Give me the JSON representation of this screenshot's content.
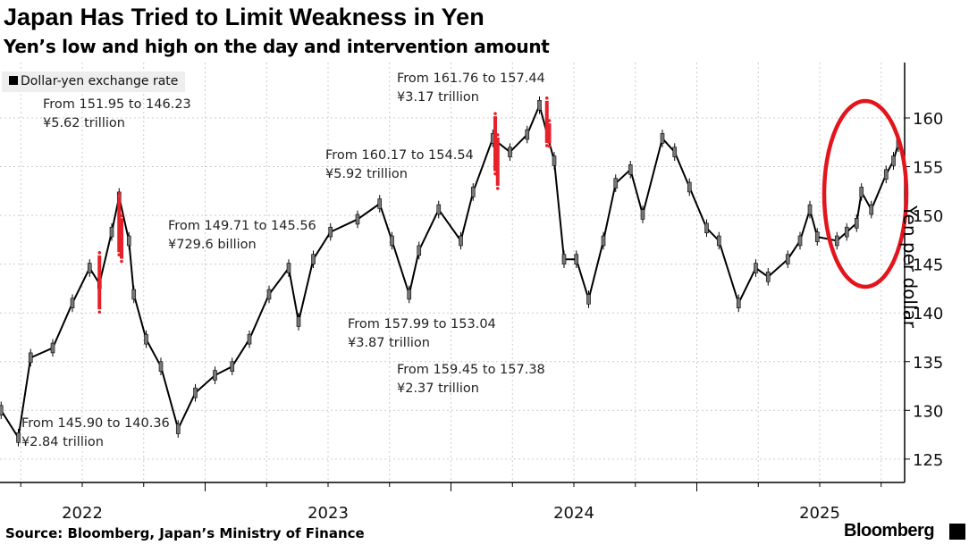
{
  "title": "Japan Has Tried to Limit Weakness in Yen",
  "subtitle": "Yen’s low and high on the day and intervention amount",
  "source": "Source: Bloomberg, Japan’s Ministry of Finance",
  "brand": "Bloomberg",
  "colors": {
    "series": "#000000",
    "intervention": "#e8202a",
    "highlight_ellipse": "#e3151c",
    "grid": "#cccccc"
  },
  "chart_data": {
    "type": "line",
    "ylabel": "Yen per dollar",
    "ylim": [
      122,
      164
    ],
    "yticks": [
      125,
      130,
      135,
      140,
      145,
      150,
      155,
      160
    ],
    "xticks": [
      {
        "label": "2022",
        "x": 2022.5
      },
      {
        "label": "2023",
        "x": 2023.5
      },
      {
        "label": "2024",
        "x": 2024.5
      },
      {
        "label": "2025",
        "x": 2025.5
      }
    ],
    "grid": true,
    "legend": {
      "label": "Dollar-yen exchange rate",
      "placement": "top-left"
    },
    "series": [
      {
        "name": "Dollar-yen exchange rate",
        "x": [
          2022.17,
          2022.24,
          2022.29,
          2022.38,
          2022.46,
          2022.53,
          2022.57,
          2022.62,
          2022.65,
          2022.69,
          2022.71,
          2022.76,
          2022.82,
          2022.89,
          2022.96,
          2023.04,
          2023.11,
          2023.18,
          2023.26,
          2023.34,
          2023.38,
          2023.44,
          2023.51,
          2023.62,
          2023.71,
          2023.76,
          2023.83,
          2023.87,
          2023.95,
          2024.04,
          2024.09,
          2024.17,
          2024.24,
          2024.31,
          2024.36,
          2024.42,
          2024.46,
          2024.51,
          2024.56,
          2024.62,
          2024.67,
          2024.73,
          2024.78,
          2024.86,
          2024.91,
          2024.97,
          2025.04,
          2025.09,
          2025.17,
          2025.24,
          2025.29,
          2025.37,
          2025.42,
          2025.46,
          2025.49,
          2025.57,
          2025.61,
          2025.65,
          2025.67,
          2025.71,
          2025.77,
          2025.8,
          2025.82
        ],
        "values": [
          130,
          127.2,
          135.4,
          136.4,
          141,
          144.6,
          143,
          148.3,
          151.9,
          147.4,
          141.9,
          137.3,
          134.5,
          128.1,
          131.8,
          133.6,
          134.5,
          137.3,
          141.9,
          144.6,
          139.1,
          145.5,
          148.3,
          149.6,
          151.2,
          147.4,
          141.9,
          146.4,
          150.6,
          147.4,
          152.4,
          157.9,
          156.5,
          158.3,
          161.3,
          155.6,
          145.5,
          145.5,
          141.4,
          147.4,
          153.3,
          154.7,
          150.1,
          157.9,
          156.5,
          152.9,
          148.7,
          147.4,
          141,
          144.6,
          143.7,
          145.5,
          147.4,
          150.6,
          147.8,
          147.4,
          148.3,
          149.2,
          152.4,
          150.6,
          154.2,
          155.6,
          157.4
        ]
      }
    ],
    "interventions": [
      {
        "x": 2022.57,
        "from": 145.9,
        "to": 140.36,
        "amount": "¥2.84 trillion",
        "text": "From 145.90 to 140.36"
      },
      {
        "x": 2022.65,
        "from": 151.95,
        "to": 146.23,
        "amount": "¥5.62 trillion",
        "text": "From 151.95 to 146.23"
      },
      {
        "x": 2022.66,
        "from": 149.71,
        "to": 145.56,
        "amount": "¥729.6 billion",
        "text": "From 149.71 to 145.56"
      },
      {
        "x": 2024.18,
        "from": 160.17,
        "to": 154.54,
        "amount": "¥5.92 trillion",
        "text": "From 160.17 to 154.54"
      },
      {
        "x": 2024.19,
        "from": 157.99,
        "to": 153.04,
        "amount": "¥3.87 trillion",
        "text": "From 157.99 to 153.04"
      },
      {
        "x": 2024.39,
        "from": 161.76,
        "to": 157.44,
        "amount": "¥3.17 trillion",
        "text": "From 161.76 to 157.44"
      },
      {
        "x": 2024.4,
        "from": 159.45,
        "to": 157.38,
        "amount": "¥2.37 trillion",
        "text": "From 159.45 to 157.38"
      }
    ]
  }
}
